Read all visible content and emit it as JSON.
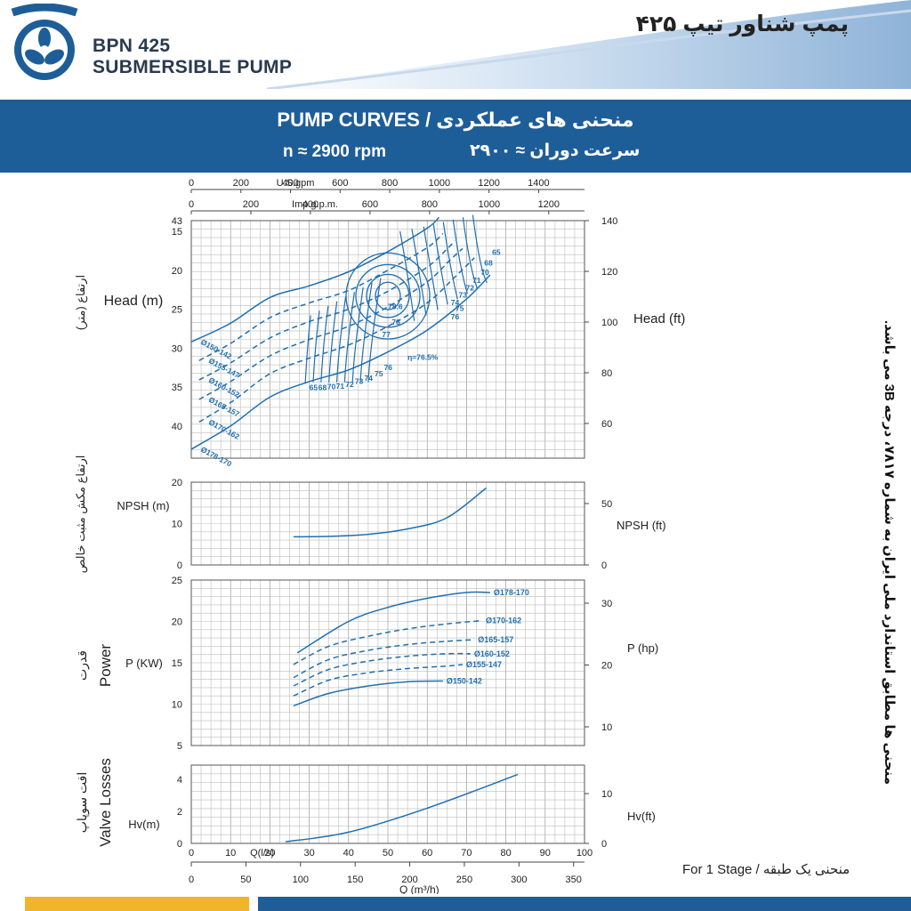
{
  "header": {
    "model": "BPN 425",
    "type": "SUBMERSIBLE PUMP",
    "title_fa": "پمپ شناور تیپ ۴۲۵"
  },
  "banner": {
    "title": "PUMP CURVES  /  منحنی های عملکردی",
    "speed_en": "n ≈ 2900 rpm",
    "speed_fa": "سرعت دوران ≈ ۲۹۰۰"
  },
  "side_note": "منحنی ها مطابق استاندارد ملی ایران به شماره ۷۸۱۷، درجه 3B می باشد.",
  "stage_note": "For 1 Stage  /  منحنی یک طبقه",
  "colors": {
    "curve": "#1f6fb0",
    "banner": "#1e5e98",
    "footer_yellow": "#f1b52c",
    "grid": "#9a9a9a"
  },
  "chart_data": {
    "type": "line",
    "x_axes": {
      "usgpm": {
        "label": "U.S.gpm",
        "ticks": [
          "0",
          "200",
          "400",
          "600",
          "800",
          "1000",
          "1200",
          "1400"
        ],
        "per_ls": 15.85
      },
      "impgpm": {
        "label": "Imp.g.p.m.",
        "ticks": [
          "0",
          "200",
          "400",
          "600",
          "800",
          "1000",
          "1200"
        ],
        "per_ls": 13.2
      },
      "ls": {
        "label": "Q(l/s)",
        "ticks": [
          "0",
          "10",
          "20",
          "30",
          "40",
          "50",
          "60",
          "70",
          "80",
          "90",
          "100"
        ],
        "range": [
          0,
          100
        ]
      },
      "m3h": {
        "label": "Q (m³/h)",
        "ticks": [
          "0",
          "50",
          "100",
          "150",
          "200",
          "250",
          "300",
          "350"
        ],
        "per_ls": 3.6
      }
    },
    "panels": [
      {
        "id": "head",
        "label_fa": "ارتفاع (متر)",
        "label_en": "Head (m)",
        "label_right": "Head (ft)",
        "y_ticks": [
          "15",
          "20",
          "25",
          "30",
          "35",
          "40",
          "43"
        ],
        "y_ticks_right": [
          "60",
          "80",
          "100",
          "120",
          "140"
        ],
        "ylim": [
          10,
          43
        ],
        "series": [
          {
            "name": "Ø178-170",
            "dashed": false,
            "x": [
              0,
              10,
              20,
              30,
              40,
              50,
              60,
              70,
              76
            ],
            "y": [
              43,
              40,
              36.3,
              34.3,
              32.8,
              30.5,
              27.7,
              23.7,
              20.6
            ]
          },
          {
            "name": "Ø170-162",
            "dashed": true,
            "x": [
              2,
              10,
              20,
              30,
              40,
              50,
              60,
              67,
              72
            ],
            "y": [
              39.5,
              37,
              33.3,
              31.3,
              29.6,
              27.2,
              24.2,
              20.9,
              18.4
            ]
          },
          {
            "name": "Ø165-157",
            "dashed": true,
            "x": [
              2,
              10,
              20,
              30,
              40,
              50,
              60,
              66,
              69
            ],
            "y": [
              36.6,
              34.3,
              31,
              28.9,
              27.2,
              24.7,
              21.5,
              18.6,
              17.2
            ]
          },
          {
            "name": "Ø160-152",
            "dashed": true,
            "x": [
              2,
              10,
              20,
              30,
              40,
              50,
              60,
              65,
              67
            ],
            "y": [
              34.1,
              31.9,
              28.7,
              26.6,
              25,
              22.7,
              19.6,
              17.3,
              16.2
            ]
          },
          {
            "name": "Ø155-147",
            "dashed": true,
            "x": [
              2,
              10,
              20,
              30,
              40,
              50,
              60,
              64
            ],
            "y": [
              31.6,
              29.4,
              26.1,
              24.2,
              22.6,
              20,
              17.1,
              15.3
            ]
          },
          {
            "name": "Ø150-142",
            "dashed": false,
            "x": [
              0,
              10,
              20,
              30,
              40,
              50,
              60,
              63
            ],
            "y": [
              29.2,
              26.8,
              23.5,
              22,
              20.2,
              17.6,
              14.6,
              13.2
            ]
          }
        ],
        "efficiency_labels": [
          "65",
          "68",
          "70",
          "71",
          "72",
          "73",
          "74",
          "75",
          "76",
          "η=76.5%",
          "77",
          "78",
          "78.6",
          "76",
          "75",
          "74",
          "73",
          "72",
          "71",
          "70",
          "68",
          "65"
        ]
      },
      {
        "id": "npsh",
        "label_fa": "ارتفاع مکش مثبت خالص",
        "label_en": "NPSH (m)",
        "label_right": "NPSH (ft)",
        "y_ticks": [
          "0",
          "10",
          "20"
        ],
        "y_ticks_right": [
          "0",
          "50"
        ],
        "ylim": [
          0,
          20
        ],
        "series": [
          {
            "name": "NPSH",
            "dashed": false,
            "x": [
              26,
              35,
              45,
              55,
              65,
              75
            ],
            "y": [
              6.8,
              6.9,
              7.4,
              8.7,
              11.4,
              18.6
            ]
          }
        ]
      },
      {
        "id": "power",
        "label_fa": "قدرت",
        "label_en": "Power",
        "label_axis": "P (KW)",
        "label_right": "P (hp)",
        "y_ticks": [
          "5",
          "10",
          "15",
          "20",
          "25"
        ],
        "y_ticks_right": [
          "10",
          "20",
          "30"
        ],
        "ylim": [
          5,
          25
        ],
        "series": [
          {
            "name": "Ø178-170",
            "dashed": false,
            "x": [
              27,
              40,
              50,
              60,
              70,
              76
            ],
            "y": [
              16.2,
              20,
              21.7,
              22.8,
              23.5,
              23.5
            ]
          },
          {
            "name": "Ø170-162",
            "dashed": true,
            "x": [
              26,
              35,
              45,
              55,
              65,
              74
            ],
            "y": [
              14.8,
              17,
              18.2,
              19.1,
              19.7,
              20.1
            ]
          },
          {
            "name": "Ø165-157",
            "dashed": true,
            "x": [
              26,
              35,
              45,
              55,
              65,
              72
            ],
            "y": [
              13.2,
              15.4,
              16.5,
              17.2,
              17.6,
              17.8
            ]
          },
          {
            "name": "Ø160-152",
            "dashed": true,
            "x": [
              26,
              35,
              45,
              55,
              65,
              71
            ],
            "y": [
              12.2,
              14.2,
              15.2,
              15.8,
              16.1,
              16.1
            ]
          },
          {
            "name": "Ø155-147",
            "dashed": true,
            "x": [
              26,
              35,
              45,
              55,
              65,
              69
            ],
            "y": [
              11,
              12.9,
              13.8,
              14.3,
              14.6,
              14.8
            ]
          },
          {
            "name": "Ø150-142",
            "dashed": false,
            "x": [
              26,
              35,
              45,
              55,
              64
            ],
            "y": [
              9.8,
              11.3,
              12.2,
              12.7,
              12.8
            ]
          }
        ]
      },
      {
        "id": "valve",
        "label_fa": "افت سوپاپ",
        "label_en": "Valve Losses",
        "label_axis": "Hv(m)",
        "label_right": "Hv(ft)",
        "y_ticks": [
          "0",
          "2",
          "4"
        ],
        "y_ticks_right": [
          "0",
          "10"
        ],
        "ylim": [
          0,
          4.5
        ],
        "series": [
          {
            "name": "Hv",
            "dashed": false,
            "x": [
              24,
              40,
              60,
              83
            ],
            "y": [
              0.1,
              0.7,
              2.2,
              4.3
            ]
          }
        ]
      }
    ]
  }
}
